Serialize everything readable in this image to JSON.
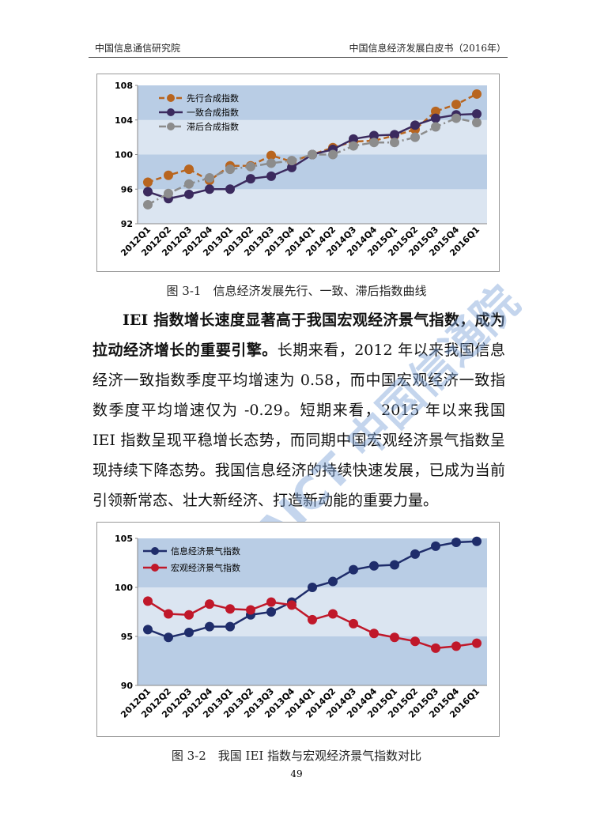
{
  "header": {
    "left": "中国信息通信研究院",
    "right": "中国信息经济发展白皮书（2016年）"
  },
  "chart_data": [
    {
      "type": "line",
      "title": "图 3-1　信息经济发展先行、一致、滞后指数曲线",
      "categories": [
        "2012Q1",
        "2012Q2",
        "2012Q3",
        "2012Q4",
        "2013Q1",
        "2013Q2",
        "2013Q3",
        "2013Q4",
        "2014Q1",
        "2014Q2",
        "2014Q3",
        "2014Q4",
        "2015Q1",
        "2015Q2",
        "2015Q3",
        "2015Q4",
        "2016Q1"
      ],
      "series": [
        {
          "name": "先行合成指数",
          "color": "#b8651f",
          "line_style": "dashed",
          "values": [
            96.8,
            97.6,
            98.3,
            97.0,
            98.7,
            98.7,
            99.9,
            99.2,
            100.0,
            100.8,
            101.5,
            101.6,
            102.2,
            102.9,
            105.0,
            105.8,
            107.0
          ]
        },
        {
          "name": "一致合成指数",
          "color": "#3b2a5e",
          "line_style": "solid",
          "values": [
            95.7,
            94.9,
            95.4,
            96.0,
            96.0,
            97.2,
            97.5,
            98.5,
            100.0,
            100.6,
            101.8,
            102.2,
            102.3,
            103.4,
            104.2,
            104.6,
            104.7
          ]
        },
        {
          "name": "滞后合成指数",
          "color": "#8c8c8c",
          "line_style": "dash-dot",
          "values": [
            94.2,
            95.5,
            96.6,
            97.3,
            98.3,
            98.6,
            99.0,
            99.3,
            100.0,
            100.0,
            101.0,
            101.4,
            101.4,
            102.0,
            103.2,
            104.2,
            103.7
          ]
        }
      ],
      "ylim": [
        92,
        108
      ],
      "yticks": [
        92,
        96,
        100,
        104,
        108
      ],
      "shading": "alternate-bands",
      "legend": "upper-left"
    },
    {
      "type": "line",
      "title": "图 3-2　我国 IEI 指数与宏观经济景气指数对比",
      "categories": [
        "2012Q1",
        "2012Q2",
        "2012Q3",
        "2012Q4",
        "2013Q1",
        "2013Q2",
        "2013Q3",
        "2013Q4",
        "2014Q1",
        "2014Q2",
        "2014Q3",
        "2014Q4",
        "2015Q1",
        "2015Q2",
        "2015Q3",
        "2015Q4",
        "2016Q1"
      ],
      "series": [
        {
          "name": "信息经济景气指数",
          "color": "#1f2d6b",
          "line_style": "solid",
          "values": [
            95.7,
            94.9,
            95.4,
            96.0,
            96.0,
            97.2,
            97.5,
            98.5,
            100.0,
            100.6,
            101.8,
            102.2,
            102.3,
            103.4,
            104.2,
            104.6,
            104.7
          ]
        },
        {
          "name": "宏观经济景气指数",
          "color": "#c0182a",
          "line_style": "solid",
          "values": [
            98.6,
            97.3,
            97.2,
            98.3,
            97.8,
            97.7,
            98.5,
            98.2,
            96.7,
            97.3,
            96.3,
            95.3,
            94.9,
            94.5,
            93.8,
            94.0,
            94.3
          ]
        }
      ],
      "ylim": [
        90,
        105
      ],
      "yticks": [
        90,
        95,
        100,
        105
      ],
      "shading": "alternate-bands",
      "legend": "upper-left"
    }
  ],
  "body": {
    "lead": "IEI 指数增长速度显著高于我国宏观经济景气指数，成为拉动经济增长的重要引擎。",
    "text": "长期来看，2012 年以来我国信息经济一致指数季度平均增速为 0.58，而中国宏观经济一致指数季度平均增速仅为 -0.29。短期来看，2015 年以来我国 IEI 指数呈现平稳增长态势，而同期中国宏观经济景气指数呈现持续下降态势。我国信息经济的持续快速发展，已成为当前引领新常态、壮大新经济、打造新动能的重要力量。"
  },
  "watermark": "CAICT 中国信通院",
  "page_number": "49"
}
